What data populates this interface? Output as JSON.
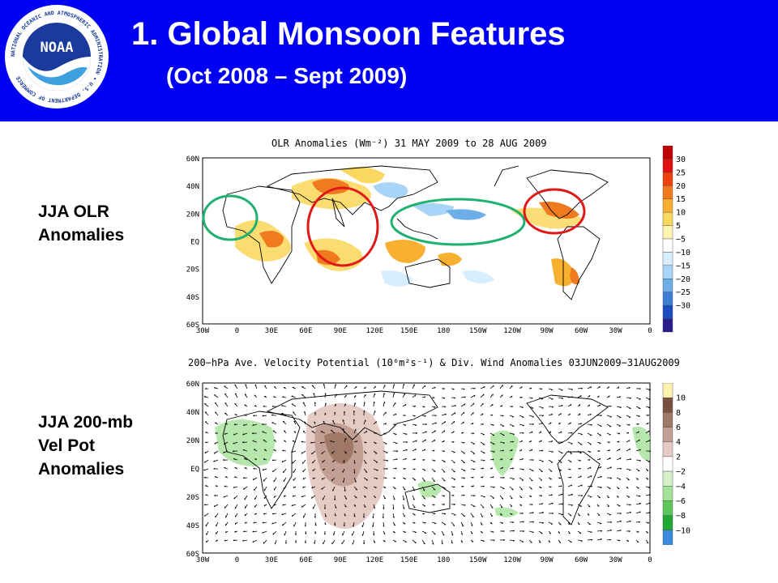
{
  "header": {
    "title": "1. Global Monsoon Features",
    "subtitle": "(Oct 2008 – Sept 2009)",
    "logo_text": "NOAA",
    "logo_ring_text": "NATIONAL OCEANIC AND ATMOSPHERIC ADMINISTRATION • U.S. DEPARTMENT OF COMMERCE",
    "bg_color": "#0000f2"
  },
  "panel1": {
    "side_label": [
      "JJA OLR",
      "Anomalies"
    ],
    "map_title": "OLR Anomalies (Wm⁻²) 31 MAY 2009 to 28 AUG 2009",
    "lat_ticks": [
      "60N",
      "40N",
      "20N",
      "EQ",
      "20S",
      "40S",
      "60S"
    ],
    "lon_ticks": [
      "30W",
      "0",
      "30E",
      "60E",
      "90E",
      "120E",
      "150E",
      "180",
      "150W",
      "120W",
      "90W",
      "60W",
      "30W",
      "0"
    ],
    "colorbar": {
      "labels": [
        "30",
        "25",
        "20",
        "15",
        "10",
        "5",
        "−5",
        "−10",
        "−15",
        "−20",
        "−25",
        "−30"
      ],
      "colors": [
        "#c00000",
        "#e01010",
        "#f04010",
        "#f07a20",
        "#f8b030",
        "#fbd860",
        "#fff4b0",
        "#ffffff",
        "#d6eeff",
        "#a8d4f8",
        "#6eaee8",
        "#3c7ed4",
        "#1d4cc0",
        "#2a1e8c"
      ]
    },
    "circles": [
      {
        "region": "West Africa",
        "color": "#20b070"
      },
      {
        "region": "South Asia",
        "color": "#e01818"
      },
      {
        "region": "Central Pacific",
        "color": "#20b070"
      },
      {
        "region": "Central America",
        "color": "#e01818"
      }
    ]
  },
  "panel2": {
    "side_label": [
      "JJA 200-mb",
      "Vel Pot",
      "Anomalies"
    ],
    "map_title": "200−hPa Ave. Velocity Potential (10⁶m²s⁻¹) & Div. Wind Anomalies 03JUN2009−31AUG2009",
    "lat_ticks": [
      "60N",
      "40N",
      "20N",
      "EQ",
      "20S",
      "40S",
      "60S"
    ],
    "lon_ticks": [
      "30W",
      "0",
      "30E",
      "60E",
      "90E",
      "120E",
      "150E",
      "180",
      "150W",
      "120W",
      "90W",
      "60W",
      "30W",
      "0"
    ],
    "colorbar": {
      "labels": [
        "10",
        "8",
        "6",
        "4",
        "2",
        "−2",
        "−4",
        "−6",
        "−8",
        "−10"
      ],
      "colors": [
        "#fff2b0",
        "#7a5040",
        "#a07868",
        "#c4a094",
        "#e4cbc4",
        "#ffffff",
        "#d4f2c8",
        "#a4e29a",
        "#5cc85c",
        "#20a830",
        "#3c8ae0"
      ]
    }
  }
}
